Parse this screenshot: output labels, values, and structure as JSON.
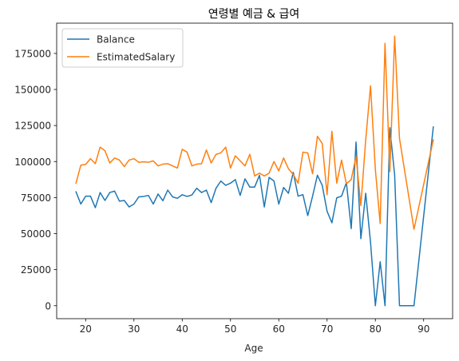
{
  "chart_data": {
    "type": "line",
    "title": "연령별 예금 & 급여",
    "xlabel": "Age",
    "ylabel": "",
    "xlim": [
      14,
      96
    ],
    "ylim": [
      -9000,
      196000
    ],
    "xticks": [
      20,
      30,
      40,
      50,
      60,
      70,
      80,
      90
    ],
    "yticks": [
      0,
      25000,
      50000,
      75000,
      100000,
      125000,
      150000,
      175000
    ],
    "grid": false,
    "legend_position": "top-left",
    "x": [
      18,
      19,
      20,
      21,
      22,
      23,
      24,
      25,
      26,
      27,
      28,
      29,
      30,
      31,
      32,
      33,
      34,
      35,
      36,
      37,
      38,
      39,
      40,
      41,
      42,
      43,
      44,
      45,
      46,
      47,
      48,
      49,
      50,
      51,
      52,
      53,
      54,
      55,
      56,
      57,
      58,
      59,
      60,
      61,
      62,
      63,
      64,
      65,
      66,
      67,
      68,
      69,
      70,
      71,
      72,
      73,
      74,
      75,
      76,
      77,
      78,
      79,
      80,
      81,
      82,
      83,
      84,
      85,
      88,
      92
    ],
    "series": [
      {
        "name": "Balance",
        "color": "#1f77b4",
        "values": [
          79000,
          70500,
          76000,
          76000,
          68000,
          78500,
          73000,
          78500,
          79500,
          72500,
          73000,
          68500,
          70500,
          75500,
          75800,
          76500,
          70500,
          77500,
          72800,
          80200,
          75500,
          74500,
          77000,
          75800,
          76800,
          81500,
          78500,
          80200,
          71500,
          81500,
          86500,
          83500,
          85000,
          87500,
          76500,
          88000,
          82300,
          82300,
          90500,
          68500,
          89000,
          86500,
          70500,
          82000,
          78000,
          92500,
          76000,
          77000,
          62500,
          76000,
          90500,
          83500,
          65500,
          57500,
          74800,
          76000,
          85500,
          53500,
          113500,
          46500,
          78000,
          44000,
          0,
          30500,
          0,
          123500,
          90500,
          0,
          0,
          124000
        ]
      },
      {
        "name": "EstimatedSalary",
        "color": "#ff7f0e",
        "values": [
          85000,
          97500,
          98000,
          102000,
          98500,
          110000,
          107500,
          99000,
          102500,
          101000,
          96500,
          101000,
          102000,
          99500,
          99800,
          99500,
          100500,
          97000,
          98200,
          98500,
          97000,
          95500,
          108500,
          106500,
          97000,
          98200,
          98500,
          108000,
          99000,
          105000,
          106000,
          110000,
          95500,
          104000,
          100500,
          97000,
          105000,
          90000,
          92000,
          90000,
          92000,
          100000,
          93500,
          102500,
          95000,
          91000,
          85000,
          106500,
          106000,
          91500,
          117500,
          112500,
          77000,
          121000,
          85000,
          101000,
          84500,
          87500,
          103500,
          69500,
          115000,
          152500,
          94500,
          57000,
          182000,
          93000,
          187000,
          116000,
          53000,
          115000
        ]
      }
    ]
  }
}
